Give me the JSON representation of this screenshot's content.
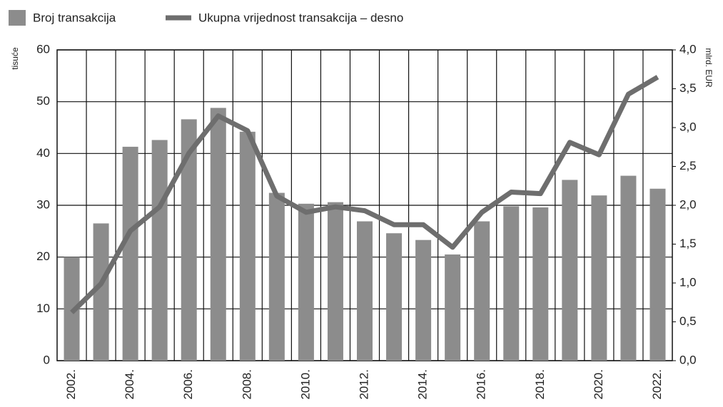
{
  "chart_data": {
    "type": "bar",
    "categories": [
      "2002.",
      null,
      "2004.",
      null,
      "2006.",
      null,
      "2008.",
      null,
      "2010.",
      null,
      "2012.",
      null,
      "2014.",
      null,
      "2016.",
      null,
      "2018.",
      null,
      "2020.",
      null,
      "2022."
    ],
    "series": [
      {
        "name": "Broj transakcija",
        "color": "#8c8c8c",
        "type": "bar",
        "values": [
          20,
          26.5,
          41.3,
          42.6,
          46.6,
          48.8,
          44.2,
          32.4,
          30.3,
          30.6,
          26.9,
          24.6,
          23.3,
          20.5,
          26.9,
          29.8,
          29.6,
          34.9,
          31.9,
          35.7,
          33.2
        ]
      },
      {
        "name": "Ukupna vrijednost transakcija – desno",
        "color": "#6e6e6e",
        "type": "line",
        "axis": "y2",
        "values": [
          0.62,
          0.99,
          1.67,
          1.98,
          2.67,
          3.15,
          2.96,
          2.12,
          1.91,
          1.98,
          1.93,
          1.75,
          1.75,
          1.46,
          1.91,
          2.17,
          2.15,
          2.81,
          2.65,
          3.43,
          3.65
        ]
      }
    ],
    "ylabel": "tisuće",
    "y2label": "mlrd. EUR",
    "ylim": [
      0,
      60
    ],
    "yticks": [
      0,
      10,
      20,
      30,
      40,
      50,
      60
    ],
    "y2lim": [
      0,
      4
    ],
    "y2ticks": [
      {
        "value": 0,
        "label": "0,0"
      },
      {
        "value": 0.5,
        "label": "0,5"
      },
      {
        "value": 1,
        "label": "1,0"
      },
      {
        "value": 1.5,
        "label": "1,5"
      },
      {
        "value": 2,
        "label": "2,0"
      },
      {
        "value": 2.5,
        "label": "2,5"
      },
      {
        "value": 3,
        "label": "3,0"
      },
      {
        "value": 3.5,
        "label": "3,5"
      },
      {
        "value": 4,
        "label": "4,0"
      }
    ],
    "grid": true,
    "legend": "top-left"
  }
}
